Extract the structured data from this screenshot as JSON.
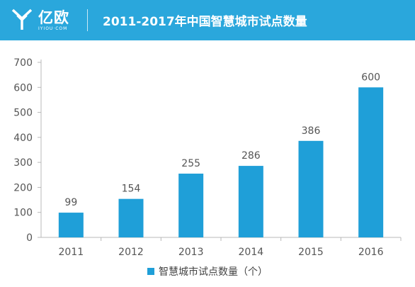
{
  "brand": {
    "name": "亿欧",
    "subtitle": "IYIOU·COM"
  },
  "colors": {
    "header": "#2aa7dc",
    "bar": "#1f9fd8",
    "axis": "#b8b8b8",
    "text": "#555555"
  },
  "chart_data": {
    "type": "bar",
    "title": "2011-2017年中国智慧城市试点数量",
    "xlabel": "",
    "ylabel": "",
    "categories": [
      "2011",
      "2012",
      "2013",
      "2014",
      "2015",
      "2016"
    ],
    "series": [
      {
        "name": "智慧城市试点数量（个）",
        "values": [
          99,
          154,
          255,
          286,
          386,
          600
        ]
      }
    ],
    "ylim": [
      0,
      700
    ],
    "yticks": [
      0,
      100,
      200,
      300,
      400,
      500,
      600,
      700
    ],
    "grid": false,
    "legend": "bottom-center",
    "data_labels": true
  }
}
